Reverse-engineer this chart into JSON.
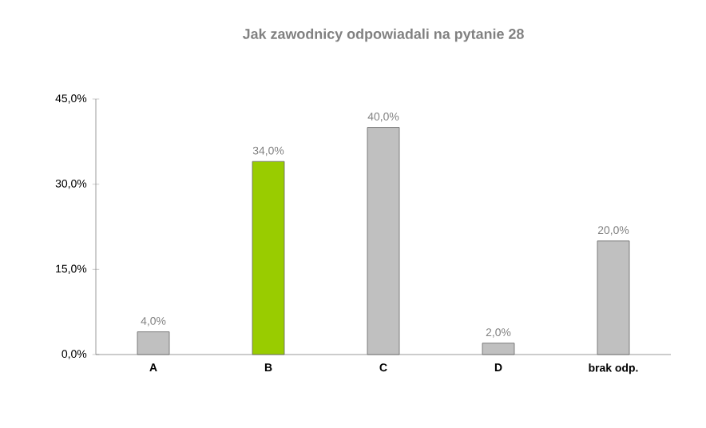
{
  "chart_data": {
    "type": "bar",
    "title": "Jak zawodnicy odpowiadali na pytanie 28",
    "categories": [
      "A",
      "B",
      "C",
      "D",
      "brak odp."
    ],
    "values": [
      4,
      34,
      40,
      2,
      20
    ],
    "value_labels": [
      "4,0%",
      "34,0%",
      "40,0%",
      "2,0%",
      "20,0%"
    ],
    "colors": [
      "#c0c0c0",
      "#99cc00",
      "#c0c0c0",
      "#c0c0c0",
      "#c0c0c0"
    ],
    "ylim": [
      0,
      45
    ],
    "yticks": [
      {
        "value": 0,
        "label": "0,0%"
      },
      {
        "value": 15,
        "label": "15,0%"
      },
      {
        "value": 30,
        "label": "30,0%"
      },
      {
        "value": 45,
        "label": "45,0%"
      }
    ]
  }
}
